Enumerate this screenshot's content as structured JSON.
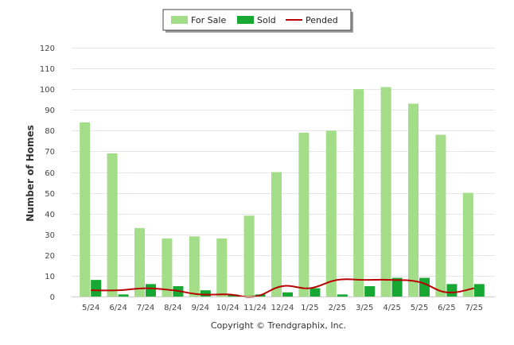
{
  "chart_data": {
    "type": "bar",
    "categories": [
      "5/24",
      "6/24",
      "7/24",
      "8/24",
      "9/24",
      "10/24",
      "11/24",
      "12/24",
      "1/25",
      "2/25",
      "3/25",
      "4/25",
      "5/25",
      "6/25",
      "7/25"
    ],
    "series": [
      {
        "name": "For Sale",
        "type": "bar",
        "color": "#a3dd87",
        "values": [
          84,
          69,
          33,
          28,
          29,
          28,
          39,
          60,
          79,
          80,
          100,
          101,
          93,
          78,
          50
        ]
      },
      {
        "name": "Sold",
        "type": "bar",
        "color": "#16a832",
        "values": [
          8,
          1,
          6,
          5,
          3,
          1,
          1,
          2,
          4,
          1,
          5,
          9,
          9,
          6,
          6
        ]
      },
      {
        "name": "Pended",
        "type": "line",
        "color": "#b80000",
        "values": [
          3,
          3,
          4,
          3,
          1,
          1,
          0,
          5,
          4,
          8,
          8,
          8,
          7,
          2,
          4
        ]
      }
    ],
    "ylabel": "Number of Homes",
    "xlabel": "",
    "ylim": [
      0,
      120
    ],
    "yticks": [
      0,
      10,
      20,
      30,
      40,
      50,
      60,
      70,
      80,
      90,
      100,
      110,
      120
    ],
    "grid": true,
    "legend_position": "top-center"
  },
  "footer": {
    "copyright": "Copyright © Trendgraphix, Inc."
  }
}
